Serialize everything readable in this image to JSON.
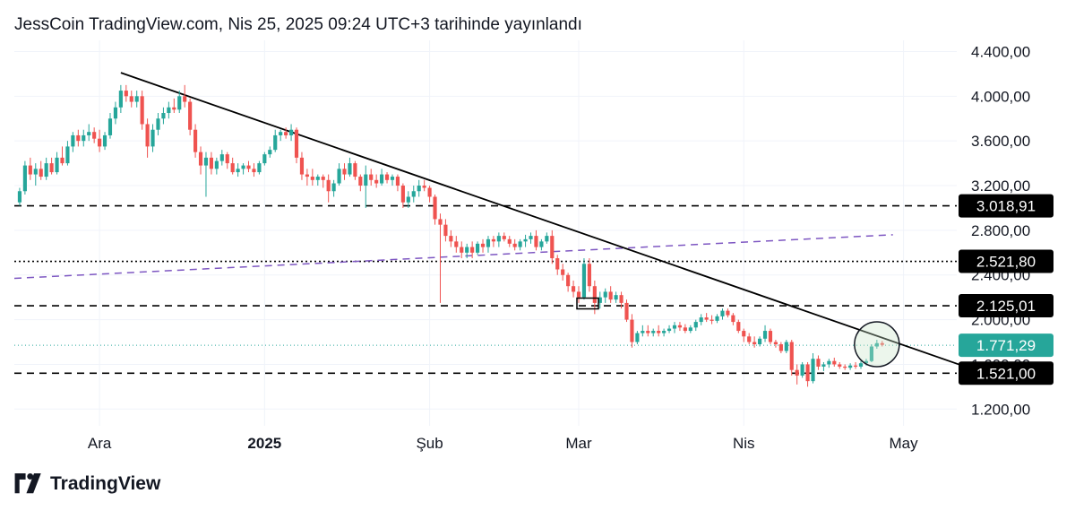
{
  "header": {
    "title": "JessCoin TradingView.com, Nis 25, 2025 09:24 UTC+3 tarihinde yayınlandı"
  },
  "footer": {
    "brand": "TradingView",
    "logo_icon": "tradingview-logo-icon"
  },
  "colors": {
    "up": "#26a69a",
    "down": "#ef5350",
    "trend": "#000000",
    "channel": "#7e57c2",
    "current": "#26a69a"
  },
  "chart_data": {
    "type": "candlestick",
    "y_axis": {
      "range": [
        1050,
        4500
      ],
      "ticks": [
        1200,
        1600,
        2000,
        2400,
        2800,
        3200,
        3600,
        4000,
        4400
      ],
      "tick_labels": [
        "1.200,00",
        "1.600,00",
        "2.000,00",
        "2.400,00",
        "2.800,00",
        "3.200,00",
        "3.600,00",
        "4.000,00",
        "4.400,00"
      ]
    },
    "x_axis": {
      "range": [
        "2024-11-15",
        "2025-05-11"
      ],
      "ticks": [
        {
          "date": "2024-12-01",
          "label": "Ara",
          "bold": false
        },
        {
          "date": "2025-01-01",
          "label": "2025",
          "bold": true
        },
        {
          "date": "2025-02-01",
          "label": "Şub",
          "bold": false
        },
        {
          "date": "2025-03-01",
          "label": "Mar",
          "bold": false
        },
        {
          "date": "2025-04-01",
          "label": "Nis",
          "bold": false
        },
        {
          "date": "2025-05-01",
          "label": "May",
          "bold": false
        }
      ]
    },
    "grid": true,
    "levels": [
      {
        "value": 3018.91,
        "label": "3.018,91",
        "style": "dashed",
        "kind": "support"
      },
      {
        "value": 2521.8,
        "label": "2.521,80",
        "style": "dotted",
        "kind": "support"
      },
      {
        "value": 2125.01,
        "label": "2.125,01",
        "style": "dashed",
        "kind": "support"
      },
      {
        "value": 1521.0,
        "label": "1.521,00",
        "style": "dashed",
        "kind": "support"
      }
    ],
    "current_price": {
      "value": 1771.29,
      "label": "1.771,29"
    },
    "trendline": {
      "from": {
        "date": "2024-12-05",
        "price": 4210
      },
      "to": {
        "date": "2025-05-15",
        "price": 1540
      }
    },
    "channel_line": {
      "from": {
        "date": "2024-11-15",
        "price": 2370
      },
      "to": {
        "date": "2025-04-29",
        "price": 2760
      }
    },
    "highlight_circle": {
      "date": "2025-04-26",
      "price": 1780
    },
    "marker_box": {
      "date": "2025-03-01",
      "price": 2145
    },
    "candles_ohlc": [
      [
        "2024-11-16",
        3050,
        3180,
        3020,
        3150
      ],
      [
        "2024-11-17",
        3150,
        3420,
        3120,
        3380
      ],
      [
        "2024-11-18",
        3380,
        3450,
        3250,
        3300
      ],
      [
        "2024-11-19",
        3300,
        3400,
        3200,
        3350
      ],
      [
        "2024-11-20",
        3350,
        3420,
        3250,
        3280
      ],
      [
        "2024-11-21",
        3280,
        3450,
        3250,
        3400
      ],
      [
        "2024-11-22",
        3400,
        3450,
        3300,
        3320
      ],
      [
        "2024-11-23",
        3320,
        3500,
        3300,
        3450
      ],
      [
        "2024-11-24",
        3450,
        3550,
        3380,
        3400
      ],
      [
        "2024-11-25",
        3400,
        3600,
        3380,
        3550
      ],
      [
        "2024-11-26",
        3550,
        3680,
        3500,
        3650
      ],
      [
        "2024-11-27",
        3650,
        3700,
        3550,
        3600
      ],
      [
        "2024-11-28",
        3600,
        3700,
        3550,
        3650
      ],
      [
        "2024-11-29",
        3650,
        3750,
        3600,
        3680
      ],
      [
        "2024-11-30",
        3680,
        3720,
        3580,
        3620
      ],
      [
        "2024-12-01",
        3620,
        3700,
        3500,
        3550
      ],
      [
        "2024-12-02",
        3550,
        3680,
        3520,
        3650
      ],
      [
        "2024-12-03",
        3650,
        3850,
        3620,
        3800
      ],
      [
        "2024-12-04",
        3800,
        3950,
        3750,
        3900
      ],
      [
        "2024-12-05",
        3900,
        4100,
        3850,
        4050
      ],
      [
        "2024-12-06",
        4050,
        4100,
        3950,
        4000
      ],
      [
        "2024-12-07",
        4000,
        4050,
        3900,
        3950
      ],
      [
        "2024-12-08",
        3950,
        4050,
        3900,
        4000
      ],
      [
        "2024-12-09",
        4000,
        4050,
        3700,
        3750
      ],
      [
        "2024-12-10",
        3750,
        3800,
        3450,
        3550
      ],
      [
        "2024-12-11",
        3550,
        3750,
        3500,
        3700
      ],
      [
        "2024-12-12",
        3700,
        3850,
        3650,
        3800
      ],
      [
        "2024-12-13",
        3800,
        3900,
        3750,
        3850
      ],
      [
        "2024-12-14",
        3850,
        3950,
        3800,
        3900
      ],
      [
        "2024-12-15",
        3900,
        3980,
        3850,
        3880
      ],
      [
        "2024-12-16",
        3880,
        4050,
        3850,
        4000
      ],
      [
        "2024-12-17",
        4000,
        4100,
        3900,
        3950
      ],
      [
        "2024-12-18",
        3950,
        3980,
        3650,
        3700
      ],
      [
        "2024-12-19",
        3700,
        3750,
        3450,
        3500
      ],
      [
        "2024-12-20",
        3500,
        3550,
        3300,
        3380
      ],
      [
        "2024-12-21",
        3380,
        3500,
        3100,
        3450
      ],
      [
        "2024-12-22",
        3450,
        3500,
        3300,
        3350
      ],
      [
        "2024-12-23",
        3350,
        3450,
        3300,
        3420
      ],
      [
        "2024-12-24",
        3420,
        3520,
        3380,
        3480
      ],
      [
        "2024-12-25",
        3480,
        3500,
        3350,
        3400
      ],
      [
        "2024-12-26",
        3400,
        3450,
        3300,
        3320
      ],
      [
        "2024-12-27",
        3320,
        3400,
        3280,
        3350
      ],
      [
        "2024-12-28",
        3350,
        3400,
        3300,
        3380
      ],
      [
        "2024-12-29",
        3380,
        3420,
        3320,
        3350
      ],
      [
        "2024-12-30",
        3350,
        3400,
        3280,
        3320
      ],
      [
        "2024-12-31",
        3320,
        3420,
        3300,
        3400
      ],
      [
        "2025-01-01",
        3400,
        3500,
        3380,
        3480
      ],
      [
        "2025-01-02",
        3480,
        3550,
        3450,
        3520
      ],
      [
        "2025-01-03",
        3520,
        3700,
        3500,
        3650
      ],
      [
        "2025-01-04",
        3650,
        3700,
        3600,
        3680
      ],
      [
        "2025-01-05",
        3680,
        3720,
        3620,
        3650
      ],
      [
        "2025-01-06",
        3650,
        3750,
        3600,
        3700
      ],
      [
        "2025-01-07",
        3700,
        3720,
        3400,
        3450
      ],
      [
        "2025-01-08",
        3450,
        3500,
        3250,
        3300
      ],
      [
        "2025-01-09",
        3300,
        3350,
        3200,
        3280
      ],
      [
        "2025-01-10",
        3280,
        3350,
        3200,
        3250
      ],
      [
        "2025-01-11",
        3250,
        3300,
        3200,
        3280
      ],
      [
        "2025-01-12",
        3280,
        3300,
        3180,
        3250
      ],
      [
        "2025-01-13",
        3250,
        3300,
        3050,
        3150
      ],
      [
        "2025-01-14",
        3150,
        3250,
        3100,
        3220
      ],
      [
        "2025-01-15",
        3220,
        3400,
        3200,
        3350
      ],
      [
        "2025-01-16",
        3350,
        3400,
        3250,
        3300
      ],
      [
        "2025-01-17",
        3300,
        3450,
        3280,
        3400
      ],
      [
        "2025-01-18",
        3400,
        3420,
        3250,
        3280
      ],
      [
        "2025-01-19",
        3280,
        3300,
        3150,
        3200
      ],
      [
        "2025-01-20",
        3200,
        3380,
        3000,
        3300
      ],
      [
        "2025-01-21",
        3300,
        3350,
        3200,
        3250
      ],
      [
        "2025-01-22",
        3250,
        3300,
        3180,
        3220
      ],
      [
        "2025-01-23",
        3220,
        3350,
        3200,
        3300
      ],
      [
        "2025-01-24",
        3300,
        3320,
        3220,
        3250
      ],
      [
        "2025-01-25",
        3250,
        3300,
        3200,
        3280
      ],
      [
        "2025-01-26",
        3280,
        3300,
        3150,
        3200
      ],
      [
        "2025-01-27",
        3200,
        3220,
        3000,
        3050
      ],
      [
        "2025-01-28",
        3050,
        3150,
        3000,
        3100
      ],
      [
        "2025-01-29",
        3100,
        3200,
        3050,
        3150
      ],
      [
        "2025-01-30",
        3150,
        3250,
        3100,
        3200
      ],
      [
        "2025-01-31",
        3200,
        3250,
        3150,
        3180
      ],
      [
        "2025-02-01",
        3180,
        3200,
        3050,
        3100
      ],
      [
        "2025-02-02",
        3100,
        3120,
        2850,
        2900
      ],
      [
        "2025-02-03",
        2900,
        2950,
        2150,
        2850
      ],
      [
        "2025-02-04",
        2850,
        2900,
        2700,
        2750
      ],
      [
        "2025-02-05",
        2750,
        2800,
        2650,
        2700
      ],
      [
        "2025-02-06",
        2700,
        2750,
        2600,
        2650
      ],
      [
        "2025-02-07",
        2650,
        2700,
        2550,
        2600
      ],
      [
        "2025-02-08",
        2600,
        2680,
        2550,
        2650
      ],
      [
        "2025-02-09",
        2650,
        2700,
        2550,
        2600
      ],
      [
        "2025-02-10",
        2600,
        2700,
        2580,
        2680
      ],
      [
        "2025-02-11",
        2680,
        2720,
        2600,
        2650
      ],
      [
        "2025-02-12",
        2650,
        2750,
        2600,
        2720
      ],
      [
        "2025-02-13",
        2720,
        2750,
        2650,
        2700
      ],
      [
        "2025-02-14",
        2700,
        2780,
        2650,
        2750
      ],
      [
        "2025-02-15",
        2750,
        2780,
        2700,
        2720
      ],
      [
        "2025-02-16",
        2720,
        2750,
        2650,
        2680
      ],
      [
        "2025-02-17",
        2680,
        2720,
        2620,
        2650
      ],
      [
        "2025-02-18",
        2650,
        2720,
        2620,
        2700
      ],
      [
        "2025-02-19",
        2700,
        2760,
        2650,
        2720
      ],
      [
        "2025-02-20",
        2720,
        2780,
        2680,
        2750
      ],
      [
        "2025-02-21",
        2750,
        2800,
        2620,
        2650
      ],
      [
        "2025-02-22",
        2650,
        2720,
        2620,
        2700
      ],
      [
        "2025-02-23",
        2700,
        2780,
        2680,
        2750
      ],
      [
        "2025-02-24",
        2750,
        2800,
        2500,
        2550
      ],
      [
        "2025-02-25",
        2550,
        2580,
        2400,
        2450
      ],
      [
        "2025-02-26",
        2450,
        2500,
        2350,
        2400
      ],
      [
        "2025-02-27",
        2400,
        2420,
        2250,
        2300
      ],
      [
        "2025-02-28",
        2300,
        2350,
        2200,
        2250
      ],
      [
        "2025-03-01",
        2250,
        2300,
        2150,
        2200
      ],
      [
        "2025-03-02",
        2200,
        2550,
        2180,
        2500
      ],
      [
        "2025-03-03",
        2500,
        2550,
        2250,
        2300
      ],
      [
        "2025-03-04",
        2300,
        2350,
        2050,
        2150
      ],
      [
        "2025-03-05",
        2150,
        2250,
        2100,
        2200
      ],
      [
        "2025-03-06",
        2200,
        2280,
        2150,
        2250
      ],
      [
        "2025-03-07",
        2250,
        2300,
        2150,
        2180
      ],
      [
        "2025-03-08",
        2180,
        2250,
        2150,
        2220
      ],
      [
        "2025-03-09",
        2220,
        2250,
        2100,
        2150
      ],
      [
        "2025-03-10",
        2150,
        2180,
        1980,
        2000
      ],
      [
        "2025-03-11",
        2000,
        2050,
        1750,
        1800
      ],
      [
        "2025-03-12",
        1800,
        1900,
        1780,
        1880
      ],
      [
        "2025-03-13",
        1880,
        1950,
        1850,
        1900
      ],
      [
        "2025-03-14",
        1900,
        1950,
        1850,
        1880
      ],
      [
        "2025-03-15",
        1880,
        1920,
        1850,
        1900
      ],
      [
        "2025-03-16",
        1900,
        1950,
        1850,
        1880
      ],
      [
        "2025-03-17",
        1880,
        1920,
        1850,
        1900
      ],
      [
        "2025-03-18",
        1900,
        1950,
        1880,
        1920
      ],
      [
        "2025-03-19",
        1920,
        1980,
        1880,
        1950
      ],
      [
        "2025-03-20",
        1950,
        1980,
        1900,
        1930
      ],
      [
        "2025-03-21",
        1930,
        1960,
        1880,
        1900
      ],
      [
        "2025-03-22",
        1900,
        1950,
        1880,
        1930
      ],
      [
        "2025-03-23",
        1930,
        2000,
        1900,
        1980
      ],
      [
        "2025-03-24",
        1980,
        2050,
        1950,
        2020
      ],
      [
        "2025-03-25",
        2020,
        2060,
        1980,
        2000
      ],
      [
        "2025-03-26",
        2000,
        2040,
        1960,
        1990
      ],
      [
        "2025-03-27",
        1990,
        2050,
        1970,
        2030
      ],
      [
        "2025-03-28",
        2030,
        2100,
        2000,
        2080
      ],
      [
        "2025-03-29",
        2080,
        2100,
        2020,
        2040
      ],
      [
        "2025-03-30",
        2040,
        2060,
        1950,
        1980
      ],
      [
        "2025-03-31",
        1980,
        2000,
        1880,
        1900
      ],
      [
        "2025-04-01",
        1900,
        1920,
        1800,
        1850
      ],
      [
        "2025-04-02",
        1850,
        1880,
        1780,
        1800
      ],
      [
        "2025-04-03",
        1800,
        1850,
        1750,
        1780
      ],
      [
        "2025-04-04",
        1780,
        1850,
        1760,
        1830
      ],
      [
        "2025-04-05",
        1830,
        1950,
        1800,
        1900
      ],
      [
        "2025-04-06",
        1900,
        1920,
        1780,
        1800
      ],
      [
        "2025-04-07",
        1800,
        1820,
        1750,
        1780
      ],
      [
        "2025-04-08",
        1780,
        1800,
        1700,
        1720
      ],
      [
        "2025-04-09",
        1720,
        1820,
        1700,
        1800
      ],
      [
        "2025-04-10",
        1800,
        1820,
        1500,
        1550
      ],
      [
        "2025-04-11",
        1550,
        1600,
        1420,
        1500
      ],
      [
        "2025-04-12",
        1500,
        1620,
        1480,
        1600
      ],
      [
        "2025-04-13",
        1600,
        1620,
        1400,
        1450
      ],
      [
        "2025-04-14",
        1450,
        1700,
        1430,
        1650
      ],
      [
        "2025-04-15",
        1650,
        1680,
        1550,
        1580
      ],
      [
        "2025-04-16",
        1580,
        1620,
        1540,
        1600
      ],
      [
        "2025-04-17",
        1600,
        1650,
        1570,
        1630
      ],
      [
        "2025-04-18",
        1630,
        1660,
        1580,
        1600
      ],
      [
        "2025-04-19",
        1600,
        1620,
        1560,
        1580
      ],
      [
        "2025-04-20",
        1580,
        1600,
        1550,
        1570
      ],
      [
        "2025-04-21",
        1570,
        1610,
        1550,
        1590
      ],
      [
        "2025-04-22",
        1590,
        1620,
        1560,
        1580
      ],
      [
        "2025-04-23",
        1580,
        1630,
        1560,
        1610
      ],
      [
        "2025-04-24",
        1610,
        1650,
        1590,
        1630
      ],
      [
        "2025-04-25",
        1630,
        1780,
        1620,
        1760
      ],
      [
        "2025-04-26",
        1760,
        1820,
        1740,
        1790
      ],
      [
        "2025-04-27",
        1790,
        1810,
        1760,
        1775
      ]
    ]
  }
}
